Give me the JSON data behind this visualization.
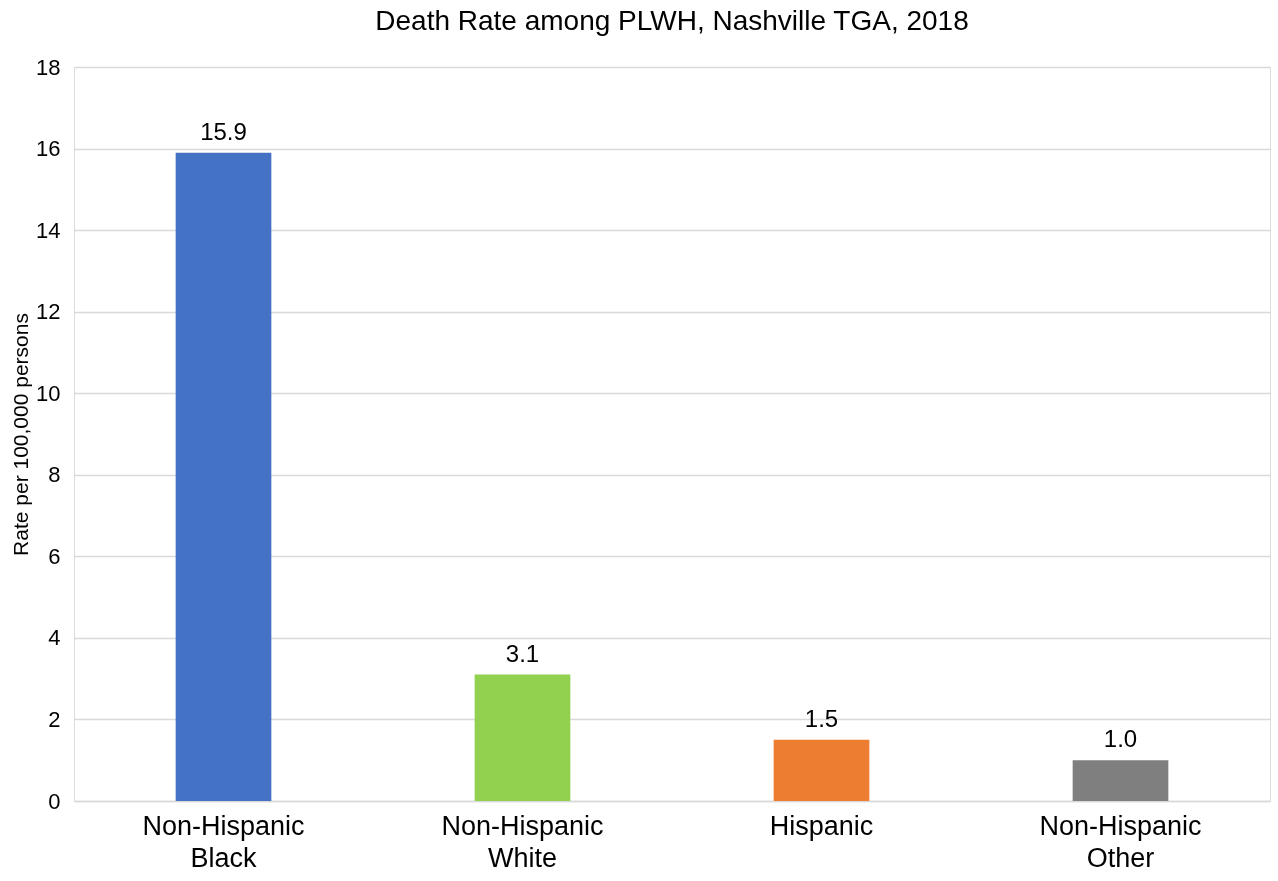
{
  "chart_data": {
    "type": "bar",
    "title": "Death Rate among PLWH, Nashville TGA, 2018",
    "ylabel": "Rate per 100,000 persons",
    "categories": [
      "Non-Hispanic Black",
      "Non-Hispanic White",
      "Hispanic",
      "Non-Hispanic Other"
    ],
    "values": [
      15.9,
      3.1,
      1.5,
      1.0
    ],
    "value_labels": [
      "15.9",
      "3.1",
      "1.5",
      "1.0"
    ],
    "colors": [
      "#4472c4",
      "#92d050",
      "#ed7d31",
      "#7f7f7f"
    ],
    "ylim": [
      0,
      18
    ],
    "yticks": [
      0,
      2,
      4,
      6,
      8,
      10,
      12,
      14,
      16,
      18
    ],
    "grid": "y"
  }
}
